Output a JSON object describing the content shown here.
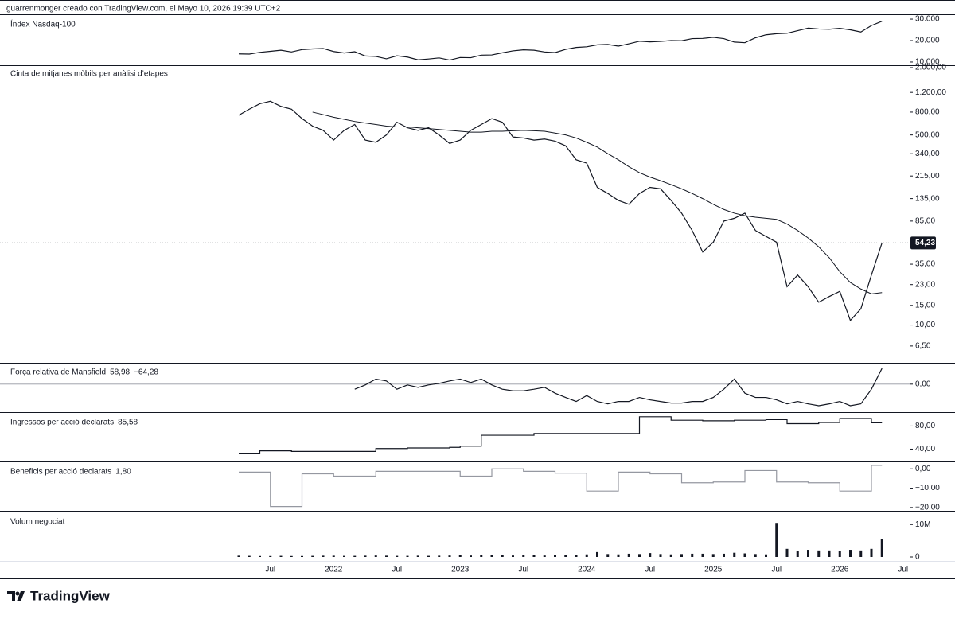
{
  "header": "guarrenmonger creado con TradingView.com, el Mayo 10, 2026 19:39 UTC+2",
  "footer": "TradingView",
  "chart_data": [
    {
      "type": "line",
      "title": "Índex Nasdaq-100",
      "x": [
        "2021-04",
        "2021-05",
        "2021-06",
        "2021-07",
        "2021-08",
        "2021-09",
        "2021-10",
        "2021-11",
        "2021-12",
        "2022-01",
        "2022-02",
        "2022-03",
        "2022-04",
        "2022-05",
        "2022-06",
        "2022-07",
        "2022-08",
        "2022-09",
        "2022-10",
        "2022-11",
        "2022-12",
        "2023-01",
        "2023-02",
        "2023-03",
        "2023-04",
        "2023-05",
        "2023-06",
        "2023-07",
        "2023-08",
        "2023-09",
        "2023-10",
        "2023-11",
        "2023-12",
        "2024-01",
        "2024-02",
        "2024-03",
        "2024-04",
        "2024-05",
        "2024-06",
        "2024-07",
        "2024-08",
        "2024-09",
        "2024-10",
        "2024-11",
        "2024-12",
        "2025-01",
        "2025-02",
        "2025-03",
        "2025-04",
        "2025-05",
        "2025-06",
        "2025-07",
        "2025-08",
        "2025-09",
        "2025-10",
        "2025-11",
        "2025-12",
        "2026-01",
        "2026-02",
        "2026-03",
        "2026-04",
        "2026-05"
      ],
      "series": [
        {
          "color": "#131722",
          "values": [
            13800,
            13700,
            14500,
            15000,
            15500,
            14700,
            15800,
            16100,
            16300,
            14900,
            14200,
            14800,
            12800,
            12600,
            11500,
            12900,
            12300,
            11000,
            11400,
            11900,
            10900,
            12100,
            12000,
            13200,
            13300,
            14300,
            15200,
            15700,
            15500,
            14700,
            14400,
            15900,
            16800,
            17100,
            18000,
            18200,
            17400,
            18500,
            19700,
            19400,
            19600,
            20000,
            19900,
            20900,
            21000,
            21500,
            20900,
            19300,
            19000,
            21300,
            22700,
            23200,
            23400,
            24600,
            25800,
            25400,
            25300,
            25700,
            25000,
            24000,
            27000,
            29000
          ]
        }
      ],
      "ylim": [
        8500,
        31500
      ],
      "yticks": [
        {
          "value": 30000,
          "label": "30.000"
        },
        {
          "value": 20000,
          "label": "20.000"
        },
        {
          "value": 10000,
          "label": "10.000"
        }
      ]
    },
    {
      "type": "line",
      "title": "Cinta de mitjanes mòbils per anàlisi d’etapes",
      "log": true,
      "last_label": "54,23",
      "x": [
        "2021-04",
        "2021-05",
        "2021-06",
        "2021-07",
        "2021-08",
        "2021-09",
        "2021-10",
        "2021-11",
        "2021-12",
        "2022-01",
        "2022-02",
        "2022-03",
        "2022-04",
        "2022-05",
        "2022-06",
        "2022-07",
        "2022-08",
        "2022-09",
        "2022-10",
        "2022-11",
        "2022-12",
        "2023-01",
        "2023-02",
        "2023-03",
        "2023-04",
        "2023-05",
        "2023-06",
        "2023-07",
        "2023-08",
        "2023-09",
        "2023-10",
        "2023-11",
        "2023-12",
        "2024-01",
        "2024-02",
        "2024-03",
        "2024-04",
        "2024-05",
        "2024-06",
        "2024-07",
        "2024-08",
        "2024-09",
        "2024-10",
        "2024-11",
        "2024-12",
        "2025-01",
        "2025-02",
        "2025-03",
        "2025-04",
        "2025-05",
        "2025-06",
        "2025-07",
        "2025-08",
        "2025-09",
        "2025-10",
        "2025-11",
        "2025-12",
        "2026-01",
        "2026-02",
        "2026-03",
        "2026-04",
        "2026-05"
      ],
      "series": [
        {
          "color": "#131722",
          "values": [
            750,
            850,
            950,
            1000,
            900,
            850,
            700,
            600,
            550,
            450,
            550,
            620,
            450,
            430,
            500,
            650,
            580,
            550,
            580,
            500,
            420,
            450,
            550,
            620,
            700,
            650,
            480,
            470,
            450,
            460,
            440,
            400,
            300,
            280,
            170,
            150,
            130,
            120,
            150,
            170,
            165,
            130,
            100,
            70,
            45,
            55,
            85,
            90,
            100,
            70,
            62,
            55,
            22,
            28,
            22,
            16,
            18,
            20,
            11,
            14,
            28,
            54.23
          ]
        },
        {
          "color": "#131722",
          "values": [
            null,
            null,
            null,
            null,
            null,
            null,
            null,
            800,
            760,
            720,
            690,
            660,
            640,
            620,
            600,
            590,
            590,
            580,
            570,
            560,
            550,
            540,
            530,
            530,
            540,
            540,
            545,
            550,
            545,
            540,
            520,
            500,
            470,
            430,
            390,
            340,
            300,
            260,
            230,
            210,
            195,
            180,
            165,
            150,
            135,
            120,
            108,
            100,
            95,
            92,
            90,
            88,
            80,
            70,
            60,
            50,
            40,
            30,
            24,
            21,
            19,
            19.5
          ]
        }
      ],
      "ylim": [
        4.6,
        2100
      ],
      "yticks": [
        {
          "value": 2000,
          "label": "2.000,00"
        },
        {
          "value": 1200,
          "label": "1.200,00"
        },
        {
          "value": 800,
          "label": "800,00"
        },
        {
          "value": 500,
          "label": "500,00"
        },
        {
          "value": 340,
          "label": "340,00"
        },
        {
          "value": 215,
          "label": "215,00"
        },
        {
          "value": 135,
          "label": "135,00"
        },
        {
          "value": 85,
          "label": "85,00"
        },
        {
          "value": 35,
          "label": "35,00"
        },
        {
          "value": 23,
          "label": "23,00"
        },
        {
          "value": 15,
          "label": "15,00"
        },
        {
          "value": 10,
          "label": "10,00"
        },
        {
          "value": 6.5,
          "label": "6,50"
        }
      ]
    },
    {
      "type": "line",
      "title": "Força relativa de Mansfield",
      "legend_values": [
        "58,98",
        "−64,28"
      ],
      "x": [
        "2021-04",
        "2021-05",
        "2021-06",
        "2021-07",
        "2021-08",
        "2021-09",
        "2021-10",
        "2021-11",
        "2021-12",
        "2022-01",
        "2022-02",
        "2022-03",
        "2022-04",
        "2022-05",
        "2022-06",
        "2022-07",
        "2022-08",
        "2022-09",
        "2022-10",
        "2022-11",
        "2022-12",
        "2023-01",
        "2023-02",
        "2023-03",
        "2023-04",
        "2023-05",
        "2023-06",
        "2023-07",
        "2023-08",
        "2023-09",
        "2023-10",
        "2023-11",
        "2023-12",
        "2024-01",
        "2024-02",
        "2024-03",
        "2024-04",
        "2024-05",
        "2024-06",
        "2024-07",
        "2024-08",
        "2024-09",
        "2024-10",
        "2024-11",
        "2024-12",
        "2025-01",
        "2025-02",
        "2025-03",
        "2025-04",
        "2025-05",
        "2025-06",
        "2025-07",
        "2025-08",
        "2025-09",
        "2025-10",
        "2025-11",
        "2025-12",
        "2026-01",
        "2026-02",
        "2026-03",
        "2026-04",
        "2026-05"
      ],
      "series": [
        {
          "color": "#131722",
          "values": [
            null,
            null,
            null,
            null,
            null,
            null,
            null,
            null,
            null,
            null,
            null,
            -19,
            -3,
            19,
            12,
            -19,
            -3,
            -12,
            -3,
            3,
            12,
            19,
            6,
            19,
            -3,
            -19,
            -25,
            -25,
            -19,
            -12,
            -34,
            -50,
            -65,
            -43,
            -65,
            -74,
            -65,
            -65,
            -50,
            -59,
            -65,
            -71,
            -71,
            -65,
            -65,
            -50,
            -19,
            19,
            -34,
            -50,
            -50,
            -59,
            -74,
            -65,
            -74,
            -81,
            -74,
            -65,
            -81,
            -74,
            -19,
            58.98
          ]
        }
      ],
      "ylim": [
        -105,
        80
      ],
      "yticks": [
        {
          "value": 0,
          "label": "0,00"
        }
      ]
    },
    {
      "type": "step",
      "title": "Ingressos per acció declarats",
      "legend_values": [
        "85,58"
      ],
      "x": [
        "2021-04",
        "2021-05",
        "2021-06",
        "2021-07",
        "2021-08",
        "2021-09",
        "2021-10",
        "2021-11",
        "2021-12",
        "2022-01",
        "2022-02",
        "2022-03",
        "2022-04",
        "2022-05",
        "2022-06",
        "2022-07",
        "2022-08",
        "2022-09",
        "2022-10",
        "2022-11",
        "2022-12",
        "2023-01",
        "2023-02",
        "2023-03",
        "2023-04",
        "2023-05",
        "2023-06",
        "2023-07",
        "2023-08",
        "2023-09",
        "2023-10",
        "2023-11",
        "2023-12",
        "2024-01",
        "2024-02",
        "2024-03",
        "2024-04",
        "2024-05",
        "2024-06",
        "2024-07",
        "2024-08",
        "2024-09",
        "2024-10",
        "2024-11",
        "2024-12",
        "2025-01",
        "2025-02",
        "2025-03",
        "2025-04",
        "2025-05",
        "2025-06",
        "2025-07",
        "2025-08",
        "2025-09",
        "2025-10",
        "2025-11",
        "2025-12",
        "2026-01",
        "2026-02",
        "2026-03",
        "2026-04",
        "2026-05"
      ],
      "series": [
        {
          "color": "#131722",
          "values": [
            33,
            33,
            37,
            37,
            37,
            36,
            36,
            36,
            36,
            36,
            36,
            36,
            36,
            41,
            41,
            41,
            42,
            42,
            42,
            42,
            43,
            45,
            45,
            64,
            64,
            64,
            64,
            64,
            67,
            67,
            67,
            67,
            67,
            67,
            67,
            67,
            67,
            67,
            96,
            96,
            96,
            90,
            90,
            90,
            89,
            89,
            89,
            90,
            90,
            90,
            91,
            91,
            84,
            84,
            84,
            86,
            86,
            93,
            93,
            93,
            85.58,
            85.58
          ]
        }
      ],
      "ylim": [
        18.6,
        104
      ],
      "yticks": [
        {
          "value": 80,
          "label": "80,00"
        },
        {
          "value": 40,
          "label": "40,00"
        }
      ]
    },
    {
      "type": "step",
      "title": "Beneficis per acció declarats",
      "legend_values": [
        "1,80"
      ],
      "x": [
        "2021-04",
        "2021-05",
        "2021-06",
        "2021-07",
        "2021-08",
        "2021-09",
        "2021-10",
        "2021-11",
        "2021-12",
        "2022-01",
        "2022-02",
        "2022-03",
        "2022-04",
        "2022-05",
        "2022-06",
        "2022-07",
        "2022-08",
        "2022-09",
        "2022-10",
        "2022-11",
        "2022-12",
        "2023-01",
        "2023-02",
        "2023-03",
        "2023-04",
        "2023-05",
        "2023-06",
        "2023-07",
        "2023-08",
        "2023-09",
        "2023-10",
        "2023-11",
        "2023-12",
        "2024-01",
        "2024-02",
        "2024-03",
        "2024-04",
        "2024-05",
        "2024-06",
        "2024-07",
        "2024-08",
        "2024-09",
        "2024-10",
        "2024-11",
        "2024-12",
        "2025-01",
        "2025-02",
        "2025-03",
        "2025-04",
        "2025-05",
        "2025-06",
        "2025-07",
        "2025-08",
        "2025-09",
        "2025-10",
        "2025-11",
        "2025-12",
        "2026-01",
        "2026-02",
        "2026-03",
        "2026-04",
        "2026-05"
      ],
      "series": [
        {
          "color": "#9598a1",
          "values": [
            -1.7,
            -1.7,
            -1.7,
            -19.5,
            -19.5,
            -19.5,
            -2.6,
            -2.6,
            -2.6,
            -3.8,
            -3.8,
            -3.8,
            -3.8,
            -1.3,
            -1.3,
            -1.3,
            -1.3,
            -1.3,
            -1.3,
            -1.3,
            -1.3,
            -3.8,
            -3.8,
            -3.8,
            0,
            0,
            0,
            -1.3,
            -1.3,
            -1.3,
            -2.2,
            -2.2,
            -2.2,
            -11.5,
            -11.5,
            -11.5,
            -1.7,
            -1.7,
            -1.7,
            -2.6,
            -2.6,
            -2.6,
            -7.2,
            -7.2,
            -7.2,
            -6.8,
            -6.8,
            -6.8,
            -0.9,
            -0.9,
            -0.9,
            -6.8,
            -6.8,
            -6.8,
            -7.2,
            -7.2,
            -7.2,
            -11.5,
            -11.5,
            -11.5,
            1.8,
            1.8
          ]
        }
      ],
      "ylim": [
        -21.7,
        3.8
      ],
      "yticks": [
        {
          "value": 0,
          "label": "0,00"
        },
        {
          "value": -10,
          "label": "−10,00"
        },
        {
          "value": -20,
          "label": "−20,00"
        }
      ]
    },
    {
      "type": "bar",
      "title": "Volum negociat",
      "x": [
        "2021-04",
        "2021-05",
        "2021-06",
        "2021-07",
        "2021-08",
        "2021-09",
        "2021-10",
        "2021-11",
        "2021-12",
        "2022-01",
        "2022-02",
        "2022-03",
        "2022-04",
        "2022-05",
        "2022-06",
        "2022-07",
        "2022-08",
        "2022-09",
        "2022-10",
        "2022-11",
        "2022-12",
        "2023-01",
        "2023-02",
        "2023-03",
        "2023-04",
        "2023-05",
        "2023-06",
        "2023-07",
        "2023-08",
        "2023-09",
        "2023-10",
        "2023-11",
        "2023-12",
        "2024-01",
        "2024-02",
        "2024-03",
        "2024-04",
        "2024-05",
        "2024-06",
        "2024-07",
        "2024-08",
        "2024-09",
        "2024-10",
        "2024-11",
        "2024-12",
        "2025-01",
        "2025-02",
        "2025-03",
        "2025-04",
        "2025-05",
        "2025-06",
        "2025-07",
        "2025-08",
        "2025-09",
        "2025-10",
        "2025-11",
        "2025-12",
        "2026-01",
        "2026-02",
        "2026-03",
        "2026-04",
        "2026-05"
      ],
      "series": [
        {
          "color": "#131722",
          "values": [
            400000,
            350000,
            300000,
            300000,
            350000,
            300000,
            300000,
            350000,
            400000,
            400000,
            350000,
            350000,
            400000,
            450000,
            400000,
            350000,
            350000,
            400000,
            350000,
            400000,
            450000,
            500000,
            450000,
            500000,
            550000,
            500000,
            450000,
            600000,
            500000,
            450000,
            500000,
            550000,
            600000,
            800000,
            1500000,
            900000,
            800000,
            1000000,
            900000,
            1200000,
            900000,
            800000,
            900000,
            1000000,
            1000000,
            900000,
            1000000,
            1300000,
            1100000,
            900000,
            800000,
            10500000,
            2500000,
            1800000,
            2200000,
            2000000,
            2000000,
            1800000,
            2200000,
            2000000,
            2500000,
            5500000
          ]
        }
      ],
      "ylim": [
        0,
        13500000
      ],
      "yticks": [
        {
          "value": 10000000,
          "label": "10M"
        },
        0
      ],
      "xticks": [
        {
          "value": "2021-07",
          "label": "Jul"
        },
        {
          "value": "2022-01",
          "label": "2022"
        },
        {
          "value": "2022-07",
          "label": "Jul"
        },
        {
          "value": "2023-01",
          "label": "2023"
        },
        {
          "value": "2023-07",
          "label": "Jul"
        },
        {
          "value": "2024-01",
          "label": "2024"
        },
        {
          "value": "2024-07",
          "label": "Jul"
        },
        {
          "value": "2025-01",
          "label": "2025"
        },
        {
          "value": "2025-07",
          "label": "Jul"
        },
        {
          "value": "2026-01",
          "label": "2026"
        },
        {
          "value": "2026-07",
          "label": "Jul"
        }
      ]
    }
  ]
}
